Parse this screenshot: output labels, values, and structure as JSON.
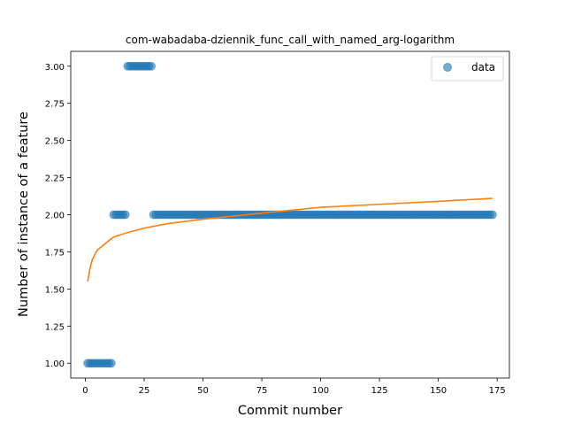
{
  "chart_data": {
    "type": "scatter",
    "title": "com-wabadaba-dziennik_func_call_with_named_arg-logarithm",
    "xlabel": "Commit number",
    "ylabel": "Number of instance of a feature",
    "xlim": [
      -6.2,
      180.2
    ],
    "ylim": [
      0.9,
      3.1
    ],
    "xticks": [
      0,
      25,
      50,
      75,
      100,
      125,
      150,
      175
    ],
    "yticks": [
      1.0,
      1.25,
      1.5,
      1.75,
      2.0,
      2.25,
      2.5,
      2.75,
      3.0
    ],
    "ytick_labels": [
      "1.00",
      "1.25",
      "1.50",
      "1.75",
      "2.00",
      "2.25",
      "2.50",
      "2.75",
      "3.00"
    ],
    "legend": {
      "position": "top-right",
      "entries": [
        "data"
      ]
    },
    "grid": false,
    "colors": {
      "data": "#1f77b4",
      "fit": "#ff7f0e"
    },
    "series": [
      {
        "name": "data",
        "kind": "scatter",
        "segments": [
          {
            "x_from": 1,
            "x_to": 11,
            "y": 1
          },
          {
            "x_from": 12,
            "x_to": 17,
            "y": 2
          },
          {
            "x_from": 18,
            "x_to": 28,
            "y": 3
          },
          {
            "x_from": 29,
            "x_to": 173,
            "y": 2
          }
        ]
      },
      {
        "kind": "line",
        "model": "logarithmic",
        "x": [
          1,
          2,
          3,
          5,
          8,
          12,
          18,
          25,
          35,
          50,
          75,
          100,
          125,
          150,
          173
        ],
        "y": [
          1.55,
          1.64,
          1.7,
          1.76,
          1.8,
          1.85,
          1.88,
          1.91,
          1.94,
          1.97,
          2.01,
          2.05,
          2.07,
          2.09,
          2.11
        ]
      }
    ]
  }
}
